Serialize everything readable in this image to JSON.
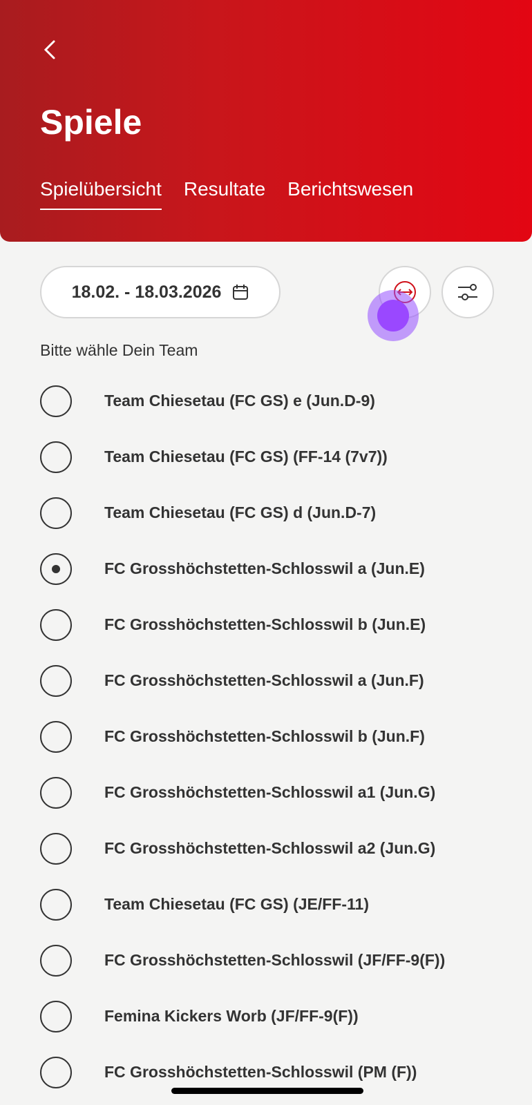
{
  "header": {
    "title": "Spiele",
    "tabs": [
      {
        "label": "Spielübersicht",
        "active": true
      },
      {
        "label": "Resultate",
        "active": false
      },
      {
        "label": "Berichtswesen",
        "active": false
      }
    ]
  },
  "toolbar": {
    "date_range": "18.02. - 18.03.2026"
  },
  "prompt": "Bitte wähle Dein Team",
  "teams": [
    {
      "label": "Team Chiesetau (FC GS) e (Jun.D-9)",
      "selected": false
    },
    {
      "label": "Team Chiesetau (FC GS) (FF-14 (7v7))",
      "selected": false
    },
    {
      "label": "Team Chiesetau (FC GS) d (Jun.D-7)",
      "selected": false
    },
    {
      "label": "FC Grosshöchstetten-Schlosswil a (Jun.E)",
      "selected": true
    },
    {
      "label": "FC Grosshöchstetten-Schlosswil b (Jun.E)",
      "selected": false
    },
    {
      "label": "FC Grosshöchstetten-Schlosswil a (Jun.F)",
      "selected": false
    },
    {
      "label": "FC Grosshöchstetten-Schlosswil b (Jun.F)",
      "selected": false
    },
    {
      "label": "FC Grosshöchstetten-Schlosswil a1 (Jun.G)",
      "selected": false
    },
    {
      "label": "FC Grosshöchstetten-Schlosswil a2 (Jun.G)",
      "selected": false
    },
    {
      "label": "Team Chiesetau (FC GS) (JE/FF-11)",
      "selected": false
    },
    {
      "label": "FC Grosshöchstetten-Schlosswil (JF/FF-9(F))",
      "selected": false
    },
    {
      "label": "Femina Kickers Worb (JF/FF-9(F))",
      "selected": false
    },
    {
      "label": "FC Grosshöchstetten-Schlosswil (PM (F))",
      "selected": false
    }
  ],
  "colors": {
    "brand": "#e30613",
    "accent_icon": "#d0101a"
  }
}
